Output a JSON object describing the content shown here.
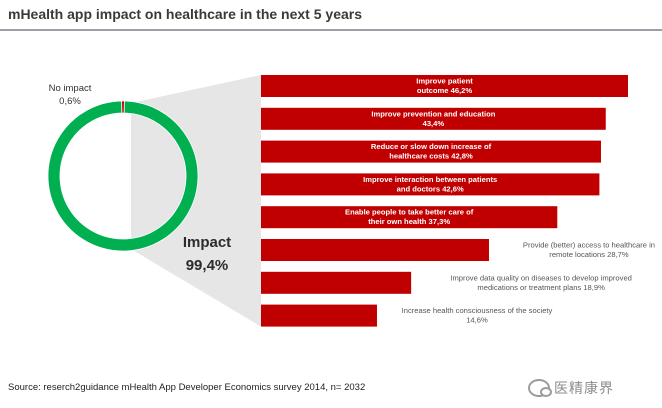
{
  "chart_data": [
    {
      "type": "pie",
      "variant": "donut",
      "slices": [
        {
          "label": "Impact",
          "value_text": "99,4%",
          "value": 99.4,
          "color": "#00b050"
        },
        {
          "label": "No impact",
          "value_text": "0,6%",
          "value": 0.6,
          "color": "#c00000"
        }
      ]
    },
    {
      "type": "bar",
      "orientation": "horizontal",
      "color": "#c00000",
      "categories": [
        "Improve patient outcome",
        "Improve prevention and education",
        "Reduce or slow down increase of healthcare costs",
        "Improve interaction between patients and doctors",
        "Enable people to take better care of their own health",
        "Provide (better) access to healthcare in remote locations",
        "Improve data quality on diseases to develop improved medications or treatment plans",
        "Increase health consciousness of the society"
      ],
      "label_lines": [
        [
          "Improve patient",
          "outcome 46,2%"
        ],
        [
          "Improve prevention and education",
          "43,4%"
        ],
        [
          "Reduce or slow down increase of",
          "healthcare costs 42,8%"
        ],
        [
          "Improve interaction between patients",
          "and doctors 42,6%"
        ],
        [
          "Enable people to take better care of",
          "their own health 37,3%"
        ],
        [
          "Provide (better) access to healthcare in",
          "remote locations 28,7%"
        ],
        [
          "Improve data quality on diseases to develop improved",
          "medications or treatment plans 18,9%"
        ],
        [
          "Increase health consciousness of the society",
          "14,6%"
        ]
      ],
      "values": [
        46.2,
        43.4,
        42.8,
        42.6,
        37.3,
        28.7,
        18.9,
        14.6
      ],
      "xlim": [
        0,
        50
      ]
    }
  ],
  "page": {
    "title": "mHealth app impact on healthcare in the next 5 years",
    "source": "Source: reserch2guidance mHealth App Developer Economics survey 2014, n= 2032",
    "watermark": "医精康界"
  }
}
